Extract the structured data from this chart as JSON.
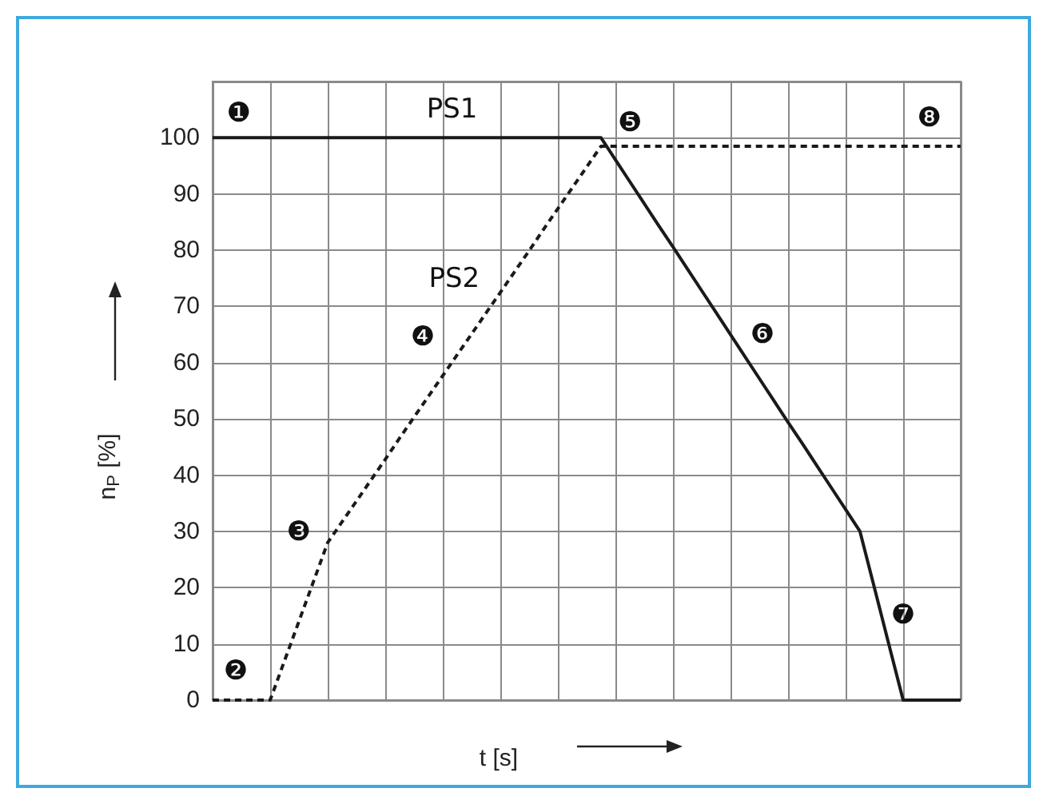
{
  "chart_data": {
    "type": "line",
    "xlabel": "t [s]",
    "ylabel": "n$_{P}$ [%]",
    "categories": [
      null,
      null,
      null,
      null,
      null,
      null,
      null,
      null,
      null,
      null,
      null,
      null,
      null,
      null,
      null,
      null,
      null,
      null,
      null,
      null,
      null,
      null,
      null,
      null,
      null,
      null,
      null,
      null,
      null,
      null,
      null,
      null,
      null,
      null,
      null,
      null,
      null,
      null,
      null,
      null,
      null,
      null,
      null,
      null,
      null,
      null,
      null,
      null,
      null,
      null,
      null,
      null,
      null
    ],
    "ylim": [
      0,
      110
    ],
    "yticks": [
      0,
      10,
      20,
      30,
      40,
      50,
      60,
      70,
      80,
      90,
      100,
      {
        "value": 110,
        "label": null
      }
    ],
    "tick_labels": "y",
    "grid": true,
    "series": [
      {
        "color": "#1a1a1a",
        "line_style": "solid",
        "values": [
          100,
          100,
          100,
          100,
          100,
          100,
          100,
          100,
          100,
          100,
          100,
          100,
          100,
          100,
          100,
          100,
          100,
          100,
          100,
          100,
          100,
          100,
          100,
          100,
          100,
          100,
          100,
          100,
          96.1,
          92.2,
          88.3,
          84.4,
          80.6,
          76.7,
          72.8,
          68.9,
          65,
          61.1,
          57.2,
          53.3,
          49.4,
          45.6,
          41.7,
          37.8,
          33.9,
          30,
          20,
          10,
          0,
          0,
          0,
          0,
          0
        ]
      },
      {
        "color": "#1a1a1a",
        "line_style": "dashed",
        "values": [
          0,
          0,
          0,
          0,
          0,
          7,
          14,
          21,
          28,
          31.7,
          35.4,
          39.1,
          42.8,
          46.6,
          50.3,
          54,
          57.7,
          61.4,
          65.1,
          68.8,
          72.5,
          76.2,
          79.9,
          83.7,
          87.4,
          91.1,
          94.8,
          98.5,
          98.5,
          98.5,
          98.5,
          98.5,
          98.5,
          98.5,
          98.5,
          98.5,
          98.5,
          98.5,
          98.5,
          98.5,
          98.5,
          98.5,
          98.5,
          98.5,
          98.5,
          98.5,
          98.5,
          98.5,
          98.5,
          98.5,
          98.5,
          98.5,
          98.5
        ]
      }
    ],
    "annotations": [
      "PS1",
      "PS2",
      "❶",
      "❷",
      "❸",
      "❹",
      "❺",
      "❻",
      "❼",
      "❽"
    ]
  }
}
